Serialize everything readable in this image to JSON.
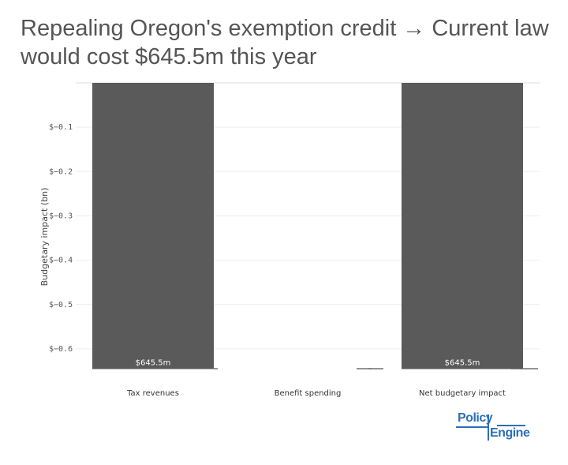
{
  "title": "Repealing Oregon's exemption credit → Current law would cost $645.5m this year",
  "logo": {
    "word1": "Policy",
    "word2": "Engine",
    "color": "#2c6fb6"
  },
  "colors": {
    "bar": "#5a5a5a",
    "grid": "#eeeeee",
    "axis": "#dddddd"
  },
  "chart_data": {
    "type": "bar",
    "title": "Repealing Oregon's exemption credit → Current law would cost $645.5m this year",
    "xlabel": "",
    "ylabel": "Budgetary impact (bn)",
    "categories": [
      "Tax revenues",
      "Benefit spending",
      "Net budgetary impact"
    ],
    "values": [
      -0.6455,
      0,
      -0.6455
    ],
    "data_labels": [
      "$645.5m",
      "",
      "$645.5m"
    ],
    "ylim": [
      -0.65,
      0
    ],
    "yticks": [
      -0.1,
      -0.2,
      -0.3,
      -0.4,
      -0.5,
      -0.6
    ],
    "ytick_labels": [
      "$−0.1",
      "$−0.2",
      "$−0.3",
      "$−0.4",
      "$−0.5",
      "$−0.6"
    ],
    "grid": true,
    "legend": "none",
    "waterfall": true
  }
}
